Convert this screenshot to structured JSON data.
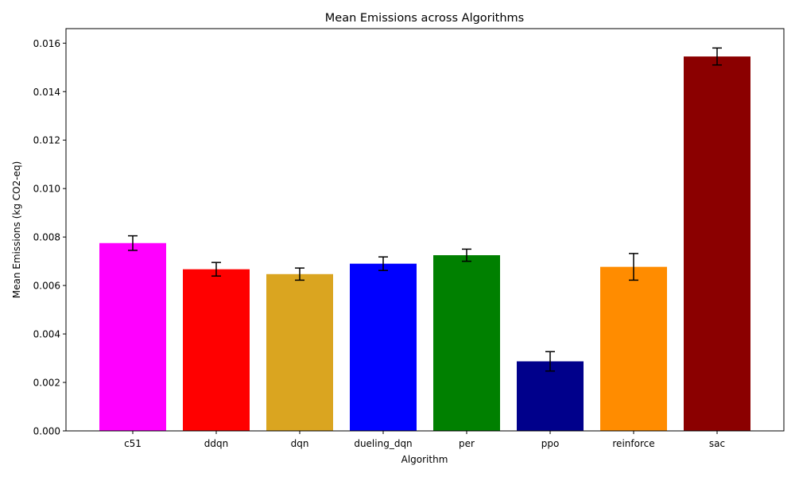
{
  "chart_data": {
    "type": "bar",
    "title": "Mean Emissions across Algorithms",
    "xlabel": "Algorithm",
    "ylabel": "Mean Emissions (kg CO2-eq)",
    "ylim": [
      0,
      0.0166
    ],
    "yticks": [
      "0.000",
      "0.002",
      "0.004",
      "0.006",
      "0.008",
      "0.010",
      "0.012",
      "0.014",
      "0.016"
    ],
    "grid": false,
    "categories": [
      "c51",
      "ddqn",
      "dqn",
      "dueling_dqn",
      "per",
      "ppo",
      "reinforce",
      "sac"
    ],
    "values": [
      0.00775,
      0.00667,
      0.00647,
      0.0069,
      0.00725,
      0.00287,
      0.00677,
      0.01545
    ],
    "errors": [
      0.0003,
      0.00028,
      0.00025,
      0.00028,
      0.00025,
      0.0004,
      0.00055,
      0.00035
    ],
    "colors": [
      "#ff00ff",
      "#ff0000",
      "#daa520",
      "#0000ff",
      "#008000",
      "#00008b",
      "#ff8c00",
      "#8b0000"
    ]
  }
}
